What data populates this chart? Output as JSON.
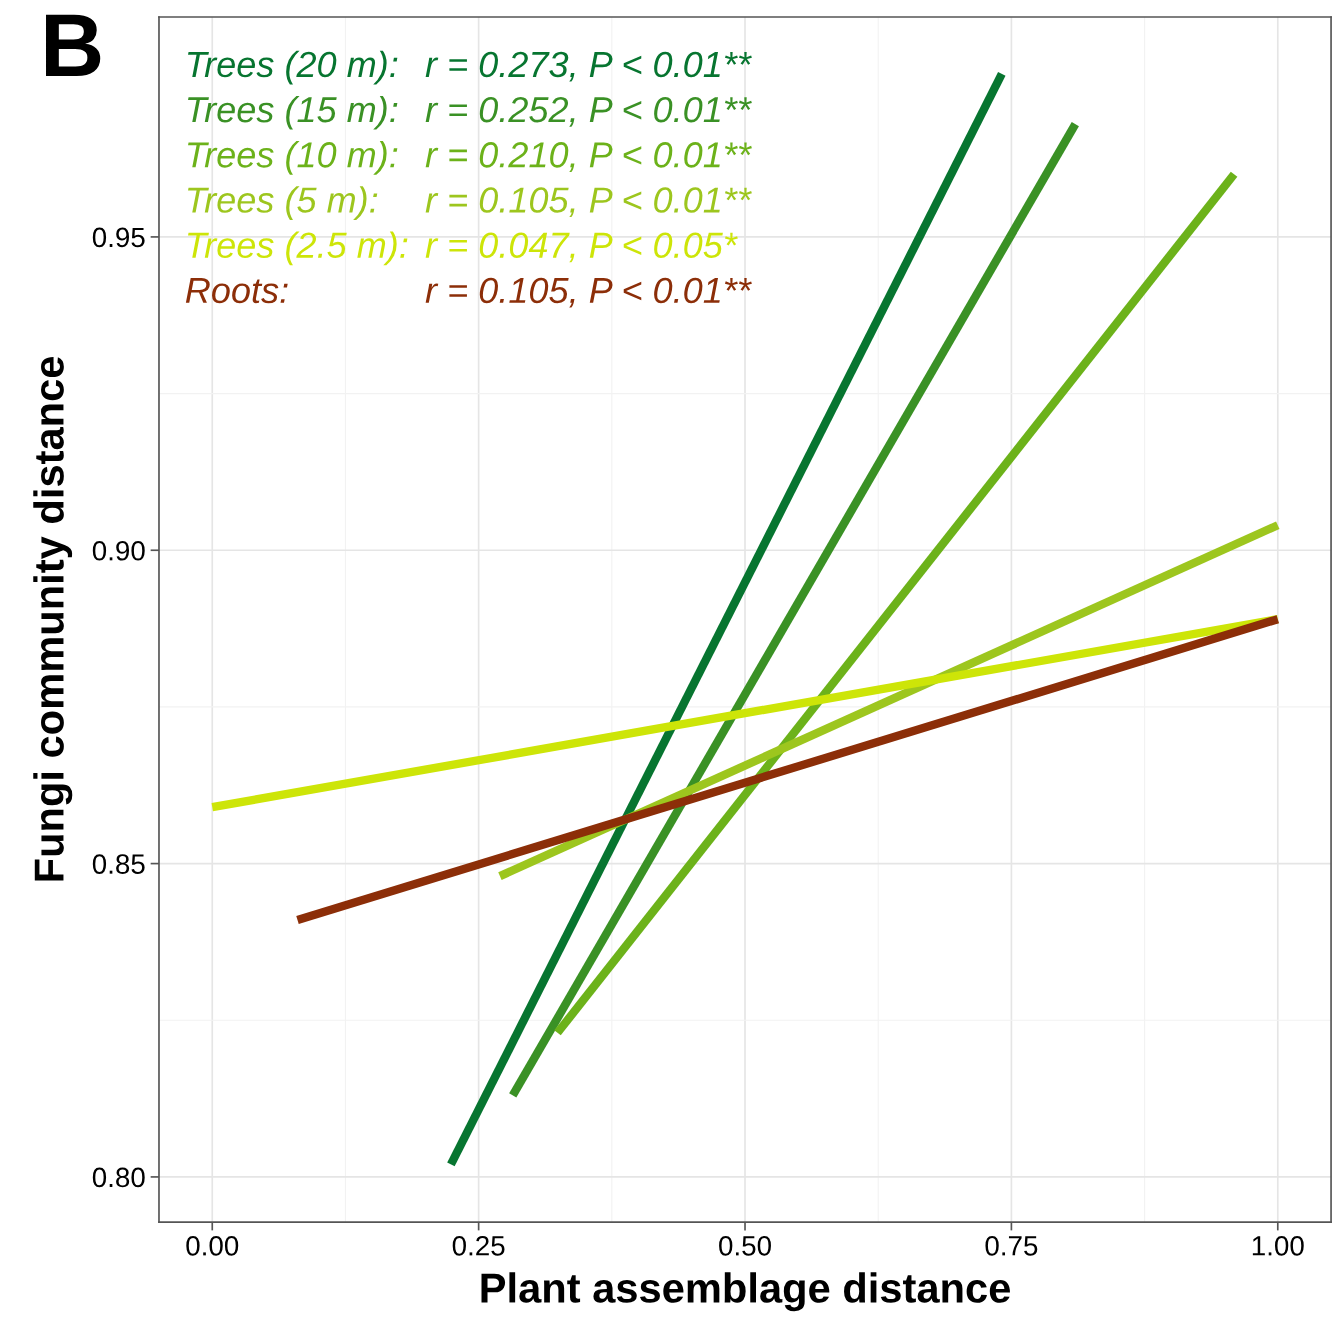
{
  "chart_data": {
    "type": "line",
    "xlabel": "Plant assemblage distance",
    "ylabel": "Fungi community distance",
    "xlim": [
      -0.05,
      1.05
    ],
    "ylim": [
      0.7928,
      0.9851
    ],
    "xticks": [
      {
        "value": 0,
        "label": "0.00"
      },
      {
        "value": 0.25,
        "label": "0.25"
      },
      {
        "value": 0.5,
        "label": "0.50"
      },
      {
        "value": 0.75,
        "label": "0.75"
      },
      {
        "value": 1,
        "label": "1.00"
      }
    ],
    "yticks": [
      {
        "value": 0.8,
        "label": "0.80"
      },
      {
        "value": 0.85,
        "label": "0.85"
      },
      {
        "value": 0.9,
        "label": "0.90"
      },
      {
        "value": 0.95,
        "label": "0.95"
      }
    ],
    "grid": true,
    "legend": "top left",
    "line_style": "solid",
    "marker": "none",
    "series": [
      {
        "name": "Trees (20 m):",
        "color": "#077530",
        "x": [
          0.224,
          0.741
        ],
        "values": [
          0.802,
          0.976
        ]
      },
      {
        "name": "Trees (15 m):",
        "color": "#3a9125",
        "x": [
          0.282,
          0.81
        ],
        "values": [
          0.813,
          0.968
        ]
      },
      {
        "name": "Trees (10 m):",
        "color": "#6cb21a",
        "x": [
          0.324,
          0.959
        ],
        "values": [
          0.823,
          0.96
        ]
      },
      {
        "name": "Trees (5 m):",
        "color": "#9dc61e",
        "x": [
          0.27,
          1.0
        ],
        "values": [
          0.848,
          0.904
        ]
      },
      {
        "name": "Trees (2.5 m):",
        "color": "#cde508",
        "x": [
          0.0,
          1.0
        ],
        "values": [
          0.859,
          0.889
        ]
      },
      {
        "name": "Roots:",
        "color": "#8c2e08",
        "x": [
          0.08,
          1.0
        ],
        "values": [
          0.841,
          0.889
        ]
      }
    ],
    "annotations": [
      "r = 0.273, P < 0.01**",
      "r = 0.252, P < 0.01**",
      "r = 0.210, P < 0.01**",
      "r = 0.105, P < 0.01**",
      "r = 0.047, P < 0.05*",
      "r = 0.105, P < 0.01**",
      "B"
    ]
  }
}
